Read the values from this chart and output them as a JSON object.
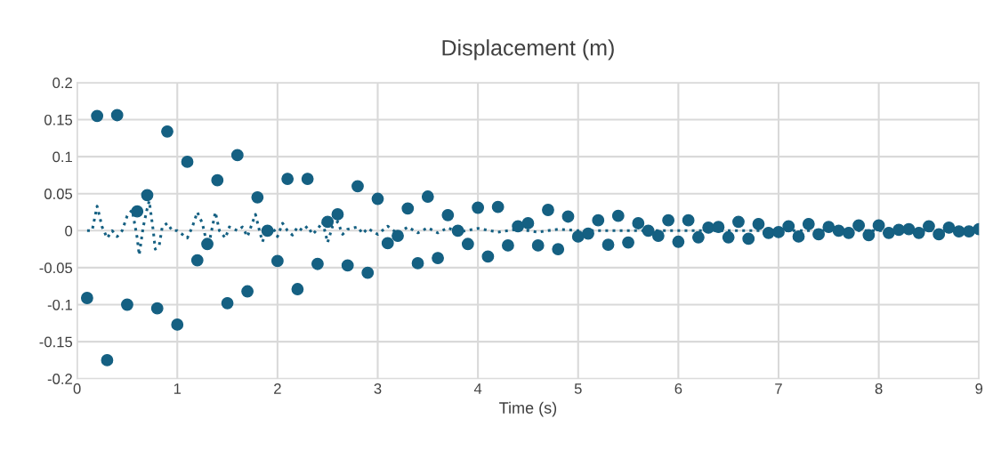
{
  "chart_data": {
    "type": "scatter",
    "title": "Displacement (m)",
    "xlabel": "Time (s)",
    "xlim": [
      0,
      9
    ],
    "xticks": [
      0,
      1,
      2,
      3,
      4,
      5,
      6,
      7,
      8,
      9
    ],
    "ylim": [
      -0.2,
      0.2
    ],
    "yticks": [
      -0.2,
      -0.15,
      -0.1,
      -0.05,
      0,
      0.05,
      0.1,
      0.15,
      0.2
    ],
    "grid": true,
    "legend": false,
    "series": [
      {
        "marker": "circle",
        "color": "#156082",
        "x": [
          0.1,
          0.2,
          0.3,
          0.4,
          0.5,
          0.6,
          0.7,
          0.8,
          0.9,
          1.0,
          1.1,
          1.2,
          1.3,
          1.4,
          1.5,
          1.6,
          1.7,
          1.8,
          1.9,
          2.0,
          2.1,
          2.2,
          2.3,
          2.4,
          2.5,
          2.6,
          2.7,
          2.8,
          2.9,
          3.0,
          3.1,
          3.2,
          3.3,
          3.4,
          3.5,
          3.6,
          3.7,
          3.8,
          3.9,
          4.0,
          4.1,
          4.2,
          4.3,
          4.4,
          4.5,
          4.6,
          4.7,
          4.8,
          4.9,
          5.0,
          5.1,
          5.2,
          5.3,
          5.4,
          5.5,
          5.6,
          5.7,
          5.8,
          5.9,
          6.0,
          6.1,
          6.2,
          6.3,
          6.4,
          6.5,
          6.6,
          6.7,
          6.8,
          6.9,
          7.0,
          7.1,
          7.2,
          7.3,
          7.4,
          7.5,
          7.6,
          7.7,
          7.8,
          7.9,
          8.0,
          8.1,
          8.2,
          8.3,
          8.4,
          8.5,
          8.6,
          8.7,
          8.8,
          8.9,
          9.0
        ],
        "values": [
          -0.091,
          0.155,
          -0.175,
          0.156,
          -0.1,
          0.026,
          0.048,
          -0.105,
          0.134,
          -0.127,
          0.093,
          -0.04,
          -0.018,
          0.068,
          -0.098,
          0.102,
          -0.082,
          0.045,
          0.0,
          -0.041,
          0.07,
          -0.079,
          0.07,
          -0.045,
          0.012,
          0.022,
          -0.047,
          0.06,
          -0.057,
          0.043,
          -0.017,
          -0.007,
          0.03,
          -0.044,
          0.046,
          -0.037,
          0.021,
          0.0,
          -0.018,
          0.031,
          -0.035,
          0.032,
          -0.02,
          0.006,
          0.01,
          -0.02,
          0.028,
          -0.025,
          0.019,
          -0.008,
          -0.004,
          0.014,
          -0.019,
          0.02,
          -0.016,
          0.01,
          0.0,
          -0.007,
          0.014,
          -0.015,
          0.014,
          -0.009,
          0.004,
          0.005,
          -0.009,
          0.012,
          -0.011,
          0.009,
          -0.003,
          -0.002,
          0.006,
          -0.008,
          0.009,
          -0.005,
          0.005,
          0.0,
          -0.003,
          0.007,
          -0.006,
          0.007,
          -0.003,
          0.001,
          0.002,
          -0.003,
          0.006,
          -0.005,
          0.004,
          -0.001,
          -0.001,
          0.002
        ]
      },
      {
        "type": "line",
        "line_style": "dotted",
        "marker": "none",
        "color": "#156082",
        "x": [
          0.1,
          0.15,
          0.2,
          0.25,
          0.3,
          0.35,
          0.4,
          0.45,
          0.5,
          0.55,
          0.6,
          0.62,
          0.66,
          0.7,
          0.72,
          0.76,
          0.78,
          0.82,
          0.85,
          0.9,
          0.95,
          1.0,
          1.05,
          1.1,
          1.15,
          1.2,
          1.25,
          1.28,
          1.32,
          1.38,
          1.42,
          1.48,
          1.52,
          1.6,
          1.65,
          1.7,
          1.78,
          1.82,
          1.85,
          1.9,
          1.95,
          2.0,
          2.05,
          2.1,
          2.15,
          2.2,
          2.25,
          2.3,
          2.35,
          2.4,
          2.45,
          2.5,
          2.55,
          2.6,
          2.65,
          2.7,
          2.8,
          2.85,
          2.9,
          3.0,
          3.1,
          3.2,
          3.3,
          3.4,
          3.5,
          3.6,
          3.7,
          3.8,
          4.0,
          4.2,
          4.4,
          4.6,
          4.8,
          5.0,
          9.0
        ],
        "values": [
          0,
          0,
          0.033,
          0.005,
          -0.01,
          0,
          -0.008,
          0,
          0.02,
          0.028,
          -0.01,
          -0.033,
          0.005,
          0.03,
          0.04,
          0,
          -0.025,
          -0.02,
          0.005,
          0.01,
          0,
          0,
          -0.005,
          -0.01,
          0.005,
          0.025,
          0.01,
          -0.008,
          -0.015,
          0.025,
          0.0,
          -0.01,
          0.005,
          0,
          0.005,
          -0.008,
          0.022,
          0,
          -0.015,
          0.002,
          0.005,
          -0.008,
          0.01,
          0.0,
          -0.006,
          0.005,
          0,
          0.006,
          -0.005,
          0.002,
          0.012,
          -0.016,
          0.006,
          0.012,
          -0.005,
          0.002,
          0.005,
          -0.004,
          0.003,
          -0.005,
          0.006,
          -0.004,
          0.005,
          -0.003,
          0.004,
          -0.003,
          0.004,
          -0.002,
          0.003,
          -0.002,
          0.002,
          -0.002,
          0.002,
          0,
          0
        ]
      }
    ]
  }
}
